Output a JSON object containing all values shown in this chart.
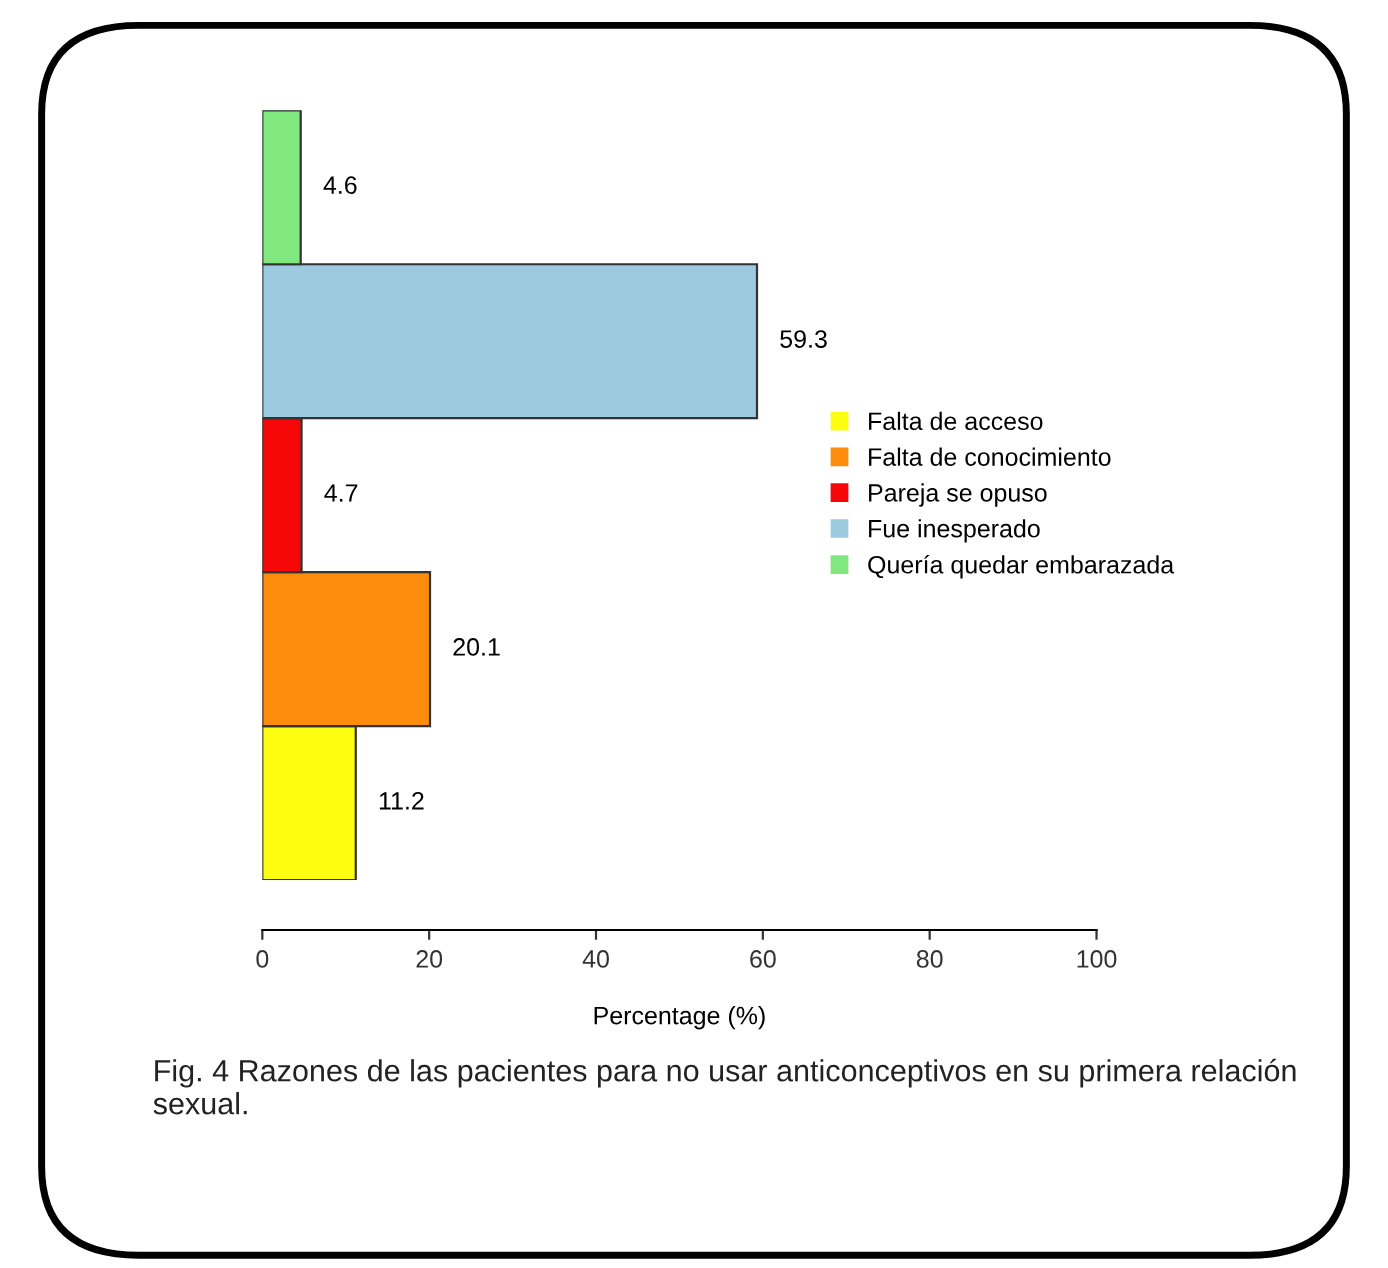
{
  "chart_data": {
    "type": "bar",
    "orientation": "horizontal",
    "stacked": true,
    "categories": [
      null,
      null,
      null,
      null,
      null
    ],
    "series": [
      {
        "name": "Falta de acceso",
        "color": "#fcfd11",
        "values": [
          0,
          0,
          0,
          0,
          11.2
        ],
        "value_labels": [
          null,
          null,
          null,
          null,
          "11.2"
        ]
      },
      {
        "name": "Falta de conocimiento",
        "color": "#fb8c0c",
        "values": [
          0,
          0,
          0,
          20.1,
          0
        ],
        "value_labels": [
          null,
          null,
          null,
          "20.1",
          null
        ]
      },
      {
        "name": "Pareja se opuso",
        "color": "#f60808",
        "values": [
          0,
          0,
          4.7,
          0,
          0
        ],
        "value_labels": [
          null,
          null,
          "4.7",
          null,
          null
        ]
      },
      {
        "name": "Fue inesperado",
        "color": "#9ccbe0",
        "values": [
          0,
          59.3,
          0,
          0,
          0
        ],
        "value_labels": [
          null,
          "59.3",
          null,
          null,
          null
        ]
      },
      {
        "name": "Quería quedar embarazada",
        "color": "#80e87f",
        "values": [
          4.6,
          0,
          0,
          0,
          0
        ],
        "value_labels": [
          "4.6",
          null,
          null,
          null,
          null
        ]
      }
    ],
    "xlim": [
      0,
      100
    ],
    "xticks": [
      0,
      20,
      40,
      60,
      80,
      100
    ],
    "xlabel": "Percentage (%)",
    "legend": "right",
    "annotations": [
      "Fig. 4 Razones de las pacientes para no usar anticonceptivos en su primera relación sexual."
    ]
  }
}
